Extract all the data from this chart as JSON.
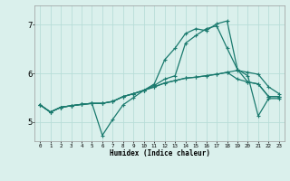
{
  "xlabel": "Humidex (Indice chaleur)",
  "xlim": [
    -0.5,
    23.5
  ],
  "ylim": [
    4.6,
    7.4
  ],
  "yticks": [
    5,
    6,
    7
  ],
  "xticks": [
    0,
    1,
    2,
    3,
    4,
    5,
    6,
    7,
    8,
    9,
    10,
    11,
    12,
    13,
    14,
    15,
    16,
    17,
    18,
    19,
    20,
    21,
    22,
    23
  ],
  "bg_color": "#daf0ec",
  "grid_color": "#b8ddd8",
  "line_color": "#1a7a6e",
  "lines": [
    {
      "x": [
        0,
        1,
        2,
        3,
        4,
        5,
        6,
        7,
        8,
        9,
        10,
        11,
        12,
        13,
        14,
        15,
        16,
        17,
        18,
        19,
        20,
        21,
        22,
        23
      ],
      "y": [
        5.35,
        5.2,
        5.3,
        5.33,
        5.36,
        5.38,
        4.72,
        5.05,
        5.35,
        5.5,
        5.65,
        5.78,
        6.28,
        6.52,
        6.82,
        6.92,
        6.88,
        7.02,
        7.08,
        6.08,
        5.95,
        5.12,
        5.48,
        5.48
      ]
    },
    {
      "x": [
        0,
        1,
        2,
        3,
        4,
        5,
        6,
        7,
        8,
        9,
        10,
        11,
        12,
        13,
        14,
        15,
        16,
        17,
        18,
        19,
        20,
        21,
        22,
        23
      ],
      "y": [
        5.35,
        5.2,
        5.3,
        5.33,
        5.36,
        5.38,
        5.38,
        5.42,
        5.52,
        5.58,
        5.65,
        5.75,
        5.88,
        5.95,
        6.62,
        6.78,
        6.92,
        6.98,
        6.52,
        6.08,
        5.82,
        5.78,
        5.52,
        5.52
      ]
    },
    {
      "x": [
        0,
        1,
        2,
        3,
        4,
        5,
        6,
        7,
        8,
        9,
        10,
        11,
        12,
        13,
        14,
        15,
        16,
        17,
        18,
        19,
        20,
        21,
        22,
        23
      ],
      "y": [
        5.35,
        5.2,
        5.3,
        5.33,
        5.36,
        5.38,
        5.38,
        5.42,
        5.52,
        5.58,
        5.65,
        5.72,
        5.8,
        5.85,
        5.9,
        5.92,
        5.95,
        5.98,
        6.02,
        6.06,
        6.02,
        5.98,
        5.72,
        5.58
      ]
    },
    {
      "x": [
        0,
        1,
        2,
        3,
        4,
        5,
        6,
        7,
        8,
        9,
        10,
        11,
        12,
        13,
        14,
        15,
        16,
        17,
        18,
        19,
        20,
        21,
        22,
        23
      ],
      "y": [
        5.35,
        5.2,
        5.3,
        5.33,
        5.36,
        5.38,
        5.38,
        5.42,
        5.52,
        5.58,
        5.65,
        5.72,
        5.8,
        5.85,
        5.9,
        5.92,
        5.95,
        5.98,
        6.02,
        5.88,
        5.82,
        5.78,
        5.52,
        5.52
      ]
    }
  ]
}
